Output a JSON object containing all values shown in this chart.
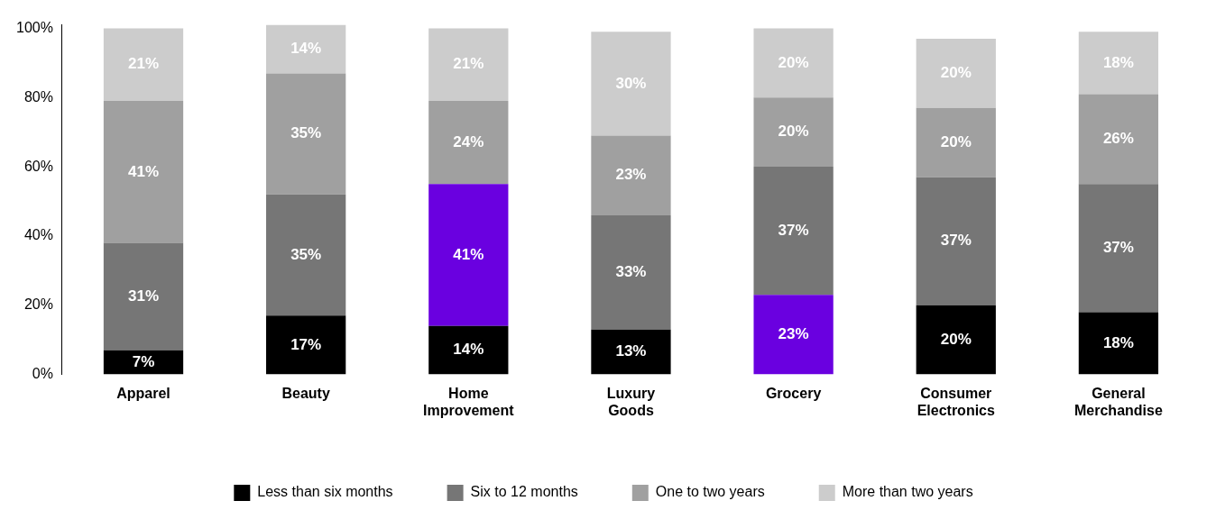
{
  "chart_data": {
    "type": "bar",
    "stacked": true,
    "categories": [
      "Apparel",
      "Beauty",
      "Home Improvement",
      "Luxury Goods",
      "Grocery",
      "Consumer Electronics",
      "General Merchandise"
    ],
    "series": [
      {
        "name": "Less than six months",
        "color": "#000000",
        "colors": [
          "#000000",
          "#000000",
          "#000000",
          "#000000",
          "#6a00e0",
          "#000000",
          "#000000"
        ],
        "values": [
          7,
          17,
          14,
          13,
          23,
          20,
          18
        ],
        "value_labels": [
          "7%",
          "17%",
          "14%",
          "13%",
          "23%",
          "20%",
          "18%"
        ]
      },
      {
        "name": "Six to 12 months",
        "color": "#767676",
        "colors": [
          "#767676",
          "#767676",
          "#6a00e0",
          "#767676",
          "#767676",
          "#767676",
          "#767676"
        ],
        "values": [
          31,
          35,
          41,
          33,
          37,
          37,
          37
        ],
        "value_labels": [
          "31%",
          "35%",
          "41%",
          "33%",
          "37%",
          "37%",
          "37%"
        ]
      },
      {
        "name": "One to two years",
        "color": "#a0a0a0",
        "values": [
          41,
          35,
          24,
          23,
          20,
          20,
          26
        ],
        "value_labels": [
          "41%",
          "35%",
          "24%",
          "23%",
          "20%",
          "20%",
          "26%"
        ]
      },
      {
        "name": "More than two years",
        "color": "#cccccc",
        "values": [
          21,
          14,
          21,
          30,
          20,
          20,
          18
        ],
        "value_labels": [
          "21%",
          "14%",
          "21%",
          "30%",
          "20%",
          "20%",
          "18%"
        ]
      }
    ],
    "ylim": [
      0,
      101
    ],
    "yticks": [
      {
        "value": 0,
        "label": "0%"
      },
      {
        "value": 20,
        "label": "20%"
      },
      {
        "value": 40,
        "label": "40%"
      },
      {
        "value": 60,
        "label": "60%"
      },
      {
        "value": 80,
        "label": "80%"
      },
      {
        "value": 100,
        "label": "100%"
      }
    ],
    "grid": false,
    "legend": "bottom"
  }
}
